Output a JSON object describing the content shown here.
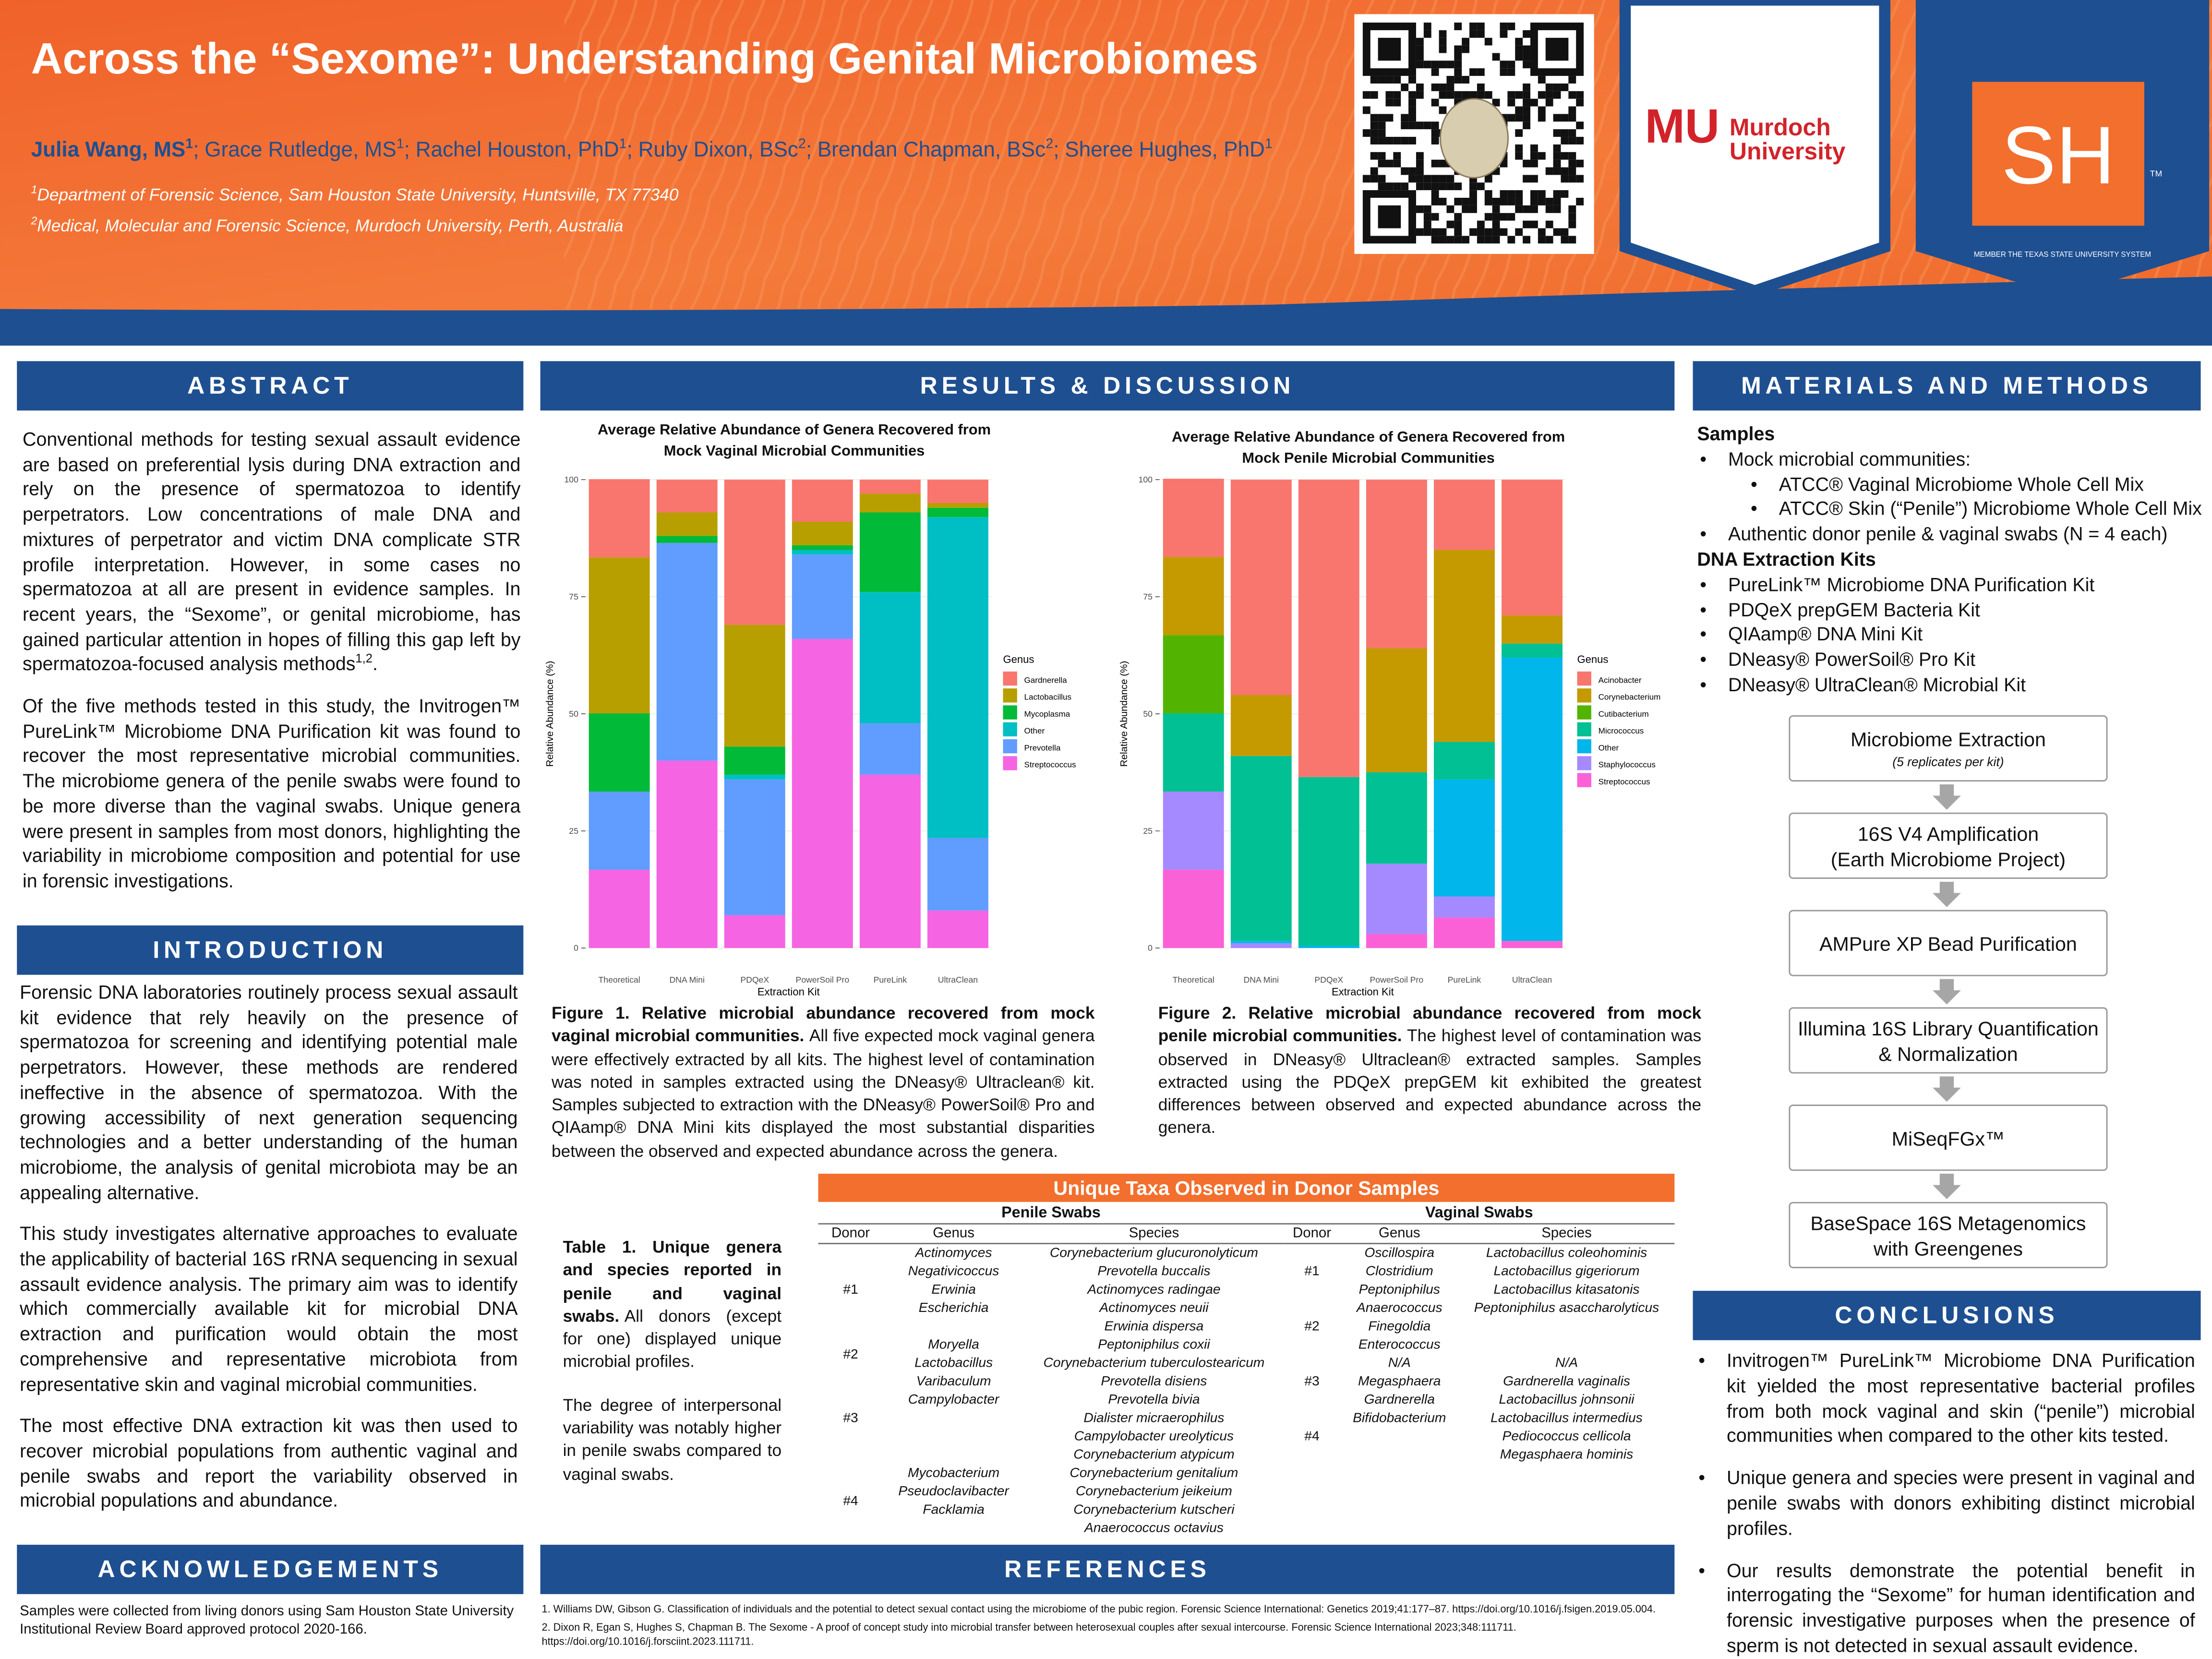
{
  "header": {
    "title": "Across the “Sexome”: Understanding Genital Microbiomes",
    "separator": ";",
    "authors": [
      {
        "name": "Julia Wang, MS",
        "affiliation": "1"
      },
      {
        "name": "Grace Rutledge, MS",
        "affiliation": "1"
      },
      {
        "name": "Rachel Houston, PhD",
        "affiliation": "1"
      },
      {
        "name": "Ruby Dixon, BSc",
        "affiliation": "2"
      },
      {
        "name": "Brendan Chapman, BSc",
        "affiliation": "2"
      },
      {
        "name": "Sheree Hughes, PhD",
        "affiliation": "1"
      }
    ],
    "affiliations": [
      {
        "mark": "1",
        "text": "Department of Forensic Science, Sam Houston State University, Huntsville, TX 77340"
      },
      {
        "mark": "2",
        "text": "Medical, Molecular and Forensic Science, Murdoch University, Perth, Australia"
      }
    ],
    "logos": {
      "murdoch_mark": "MU",
      "murdoch_name": [
        "Murdoch",
        "University"
      ],
      "shsu_mark": "SH",
      "shsu_tm": "TM",
      "shsu_member": "MEMBER THE TEXAS STATE UNIVERSITY SYSTEM"
    }
  },
  "abstract": {
    "heading": "ABSTRACT",
    "paragraphs": [
      {
        "text": "Conventional methods for testing sexual assault evidence are based on preferential lysis during DNA extraction and rely on the presence of spermatozoa to identify perpetrators. Low concentrations of male DNA and mixtures of perpetrator and victim DNA complicate STR profile interpretation. However, in some cases no spermatozoa at all are present in evidence samples. In recent years, the “Sexome”, or genital microbiome, has gained particular attention in hopes of filling this gap left by spermatozoa-focused analysis methods",
        "sup": "1,2",
        "tail": "."
      },
      {
        "text": "Of the five methods tested in this study, the Invitrogen™ PureLink™ Microbiome DNA Purification kit was found to recover the most representative microbial communities. The microbiome genera of the penile swabs were found to be more diverse than the vaginal swabs. Unique genera were present in samples from most donors, highlighting the variability in microbiome composition and potential for use in forensic investigations."
      }
    ]
  },
  "introduction": {
    "heading": "INTRODUCTION",
    "paragraphs": [
      "Forensic DNA laboratories routinely process sexual assault kit evidence that rely heavily on the presence of spermatozoa for screening and identifying potential male perpetrators. However, these methods are rendered ineffective in the absence of spermatozoa. With the growing accessibility of next generation sequencing technologies and a better understanding of the human microbiome, the analysis of genital microbiota may be an appealing alternative.",
      "This study investigates alternative approaches to evaluate the applicability of bacterial 16S rRNA sequencing in sexual assault evidence analysis. The primary aim was to identify which commercially available kit for microbial DNA extraction and purification would obtain the most comprehensive and representative microbiota from representative skin and vaginal microbial communities.",
      "The most effective DNA extraction kit was then used to recover microbial populations from authentic vaginal and penile swabs and report the variability observed in microbial populations and abundance."
    ]
  },
  "acknowledgements": {
    "heading": "ACKNOWLEDGEMENTS",
    "text": "Samples were collected from living donors using Sam Houston State University Institutional Review Board approved protocol 2020-166."
  },
  "results": {
    "heading": "RESULTS & DISCUSSION"
  },
  "chart_data": [
    {
      "type": "bar",
      "stacked": true,
      "legend": "right",
      "grid": true,
      "title": "Average Relative Abundance of Genera Recovered from Mock Vaginal Microbial Communities",
      "x_label": "Extraction Kit",
      "y_label": "Relative Abundance (%)",
      "legend_title": "Genus",
      "categories": [
        "Theoretical",
        "DNA Mini",
        "PDQeX",
        "PowerSoil Pro",
        "PureLink",
        "UltraClean"
      ],
      "ylim": [
        -5,
        105
      ],
      "yticks": [
        0,
        25,
        50,
        75,
        100
      ],
      "series": [
        {
          "name": "Gardnerella",
          "color": "#F8766D",
          "values": [
            16.7,
            7,
            31,
            9,
            3,
            5
          ]
        },
        {
          "name": "Lactobacillus",
          "color": "#B79F00",
          "values": [
            33.3,
            5,
            26,
            5,
            4,
            1
          ]
        },
        {
          "name": "Mycoplasma",
          "color": "#00BA38",
          "values": [
            16.7,
            1.5,
            6,
            1,
            17,
            2
          ]
        },
        {
          "name": "Other",
          "color": "#00BFC4",
          "values": [
            0,
            0,
            1,
            1,
            28,
            68.5
          ]
        },
        {
          "name": "Prevotella",
          "color": "#619CFF",
          "values": [
            16.7,
            46.5,
            29,
            18,
            11,
            15.5
          ]
        },
        {
          "name": "Streptococcus",
          "color": "#F564E3",
          "values": [
            16.7,
            40,
            7,
            66,
            37,
            8
          ]
        }
      ]
    },
    {
      "type": "bar",
      "stacked": true,
      "legend": "right",
      "grid": true,
      "title": "Average Relative Abundance of Genera Recovered from Mock Penile Microbial Communities",
      "x_label": "Extraction Kit",
      "y_label": "Relative Abundance (%)",
      "legend_title": "Genus",
      "categories": [
        "Theoretical",
        "DNA Mini",
        "PDQeX",
        "PowerSoil Pro",
        "PureLink",
        "UltraClean"
      ],
      "ylim": [
        -5,
        105
      ],
      "yticks": [
        0,
        25,
        50,
        75,
        100
      ],
      "series": [
        {
          "name": "Acinobacter",
          "color": "#F8766D",
          "values": [
            16.7,
            46,
            63.5,
            36,
            15,
            29
          ]
        },
        {
          "name": "Corynebacterium",
          "color": "#C49A00",
          "values": [
            16.7,
            13,
            0,
            26.5,
            41,
            6
          ]
        },
        {
          "name": "Cutibacterium",
          "color": "#53B400",
          "values": [
            16.7,
            0,
            0,
            0,
            0,
            0
          ]
        },
        {
          "name": "Micrococcus",
          "color": "#00C094",
          "values": [
            16.7,
            39.5,
            36,
            19.5,
            8,
            3
          ]
        },
        {
          "name": "Other",
          "color": "#00B6EB",
          "values": [
            0,
            0.5,
            0.5,
            0,
            25,
            60.5
          ]
        },
        {
          "name": "Staphylococcus",
          "color": "#A58AFF",
          "values": [
            16.7,
            1,
            0,
            15,
            4.5,
            0
          ]
        },
        {
          "name": "Streptococcus",
          "color": "#FB61D7",
          "values": [
            16.7,
            0,
            0,
            3,
            6.5,
            1.5
          ]
        }
      ]
    }
  ],
  "figures": [
    {
      "label": "Figure 1. Relative microbial abundance recovered from mock vaginal microbial communities.",
      "text": "All five expected mock vaginal genera were effectively extracted by all kits. The highest level of contamination was noted in samples extracted using the DNeasy® Ultraclean® kit. Samples subjected to extraction with the DNeasy® PowerSoil® Pro and QIAamp® DNA Mini kits displayed the most substantial disparities between the observed and expected abundance across the genera."
    },
    {
      "label": "Figure 2. Relative microbial abundance recovered from mock penile microbial communities.",
      "text": "The highest level of contamination was observed in DNeasy® Ultraclean® extracted samples. Samples extracted using the PDQeX prepGEM kit exhibited the greatest differences between observed and expected abundance across the genera."
    }
  ],
  "table": {
    "title": "Unique Taxa Observed in Donor Samples",
    "caption_label": "Table 1. Unique genera and species reported in penile and vaginal swabs.",
    "caption_text": "All donors (except for one) displayed unique microbial profiles.",
    "caption_note": "The degree of interpersonal variability was notably higher in penile swabs compared to vaginal swabs.",
    "groups": [
      {
        "name": "Penile Swabs",
        "columns": [
          "Donor",
          "Genus",
          "Species"
        ],
        "donors": [
          {
            "donor": "#1",
            "genus": [
              "Actinomyces",
              "Negativicoccus",
              "Erwinia",
              "Escherichia"
            ],
            "species": [
              "Corynebacterium glucuronolyticum",
              "Prevotella buccalis",
              "Actinomyces radingae",
              "Actinomyces neuii",
              "Erwinia dispersa"
            ]
          },
          {
            "donor": "#2",
            "genus": [
              "Moryella",
              "Lactobacillus"
            ],
            "species": [
              "Peptoniphilus coxii",
              "Corynebacterium tuberculostearicum"
            ]
          },
          {
            "donor": "#3",
            "genus": [
              "Varibaculum",
              "Campylobacter"
            ],
            "species": [
              "Prevotella disiens",
              "Prevotella bivia",
              "Dialister micraerophilus",
              "Campylobacter ureolyticus",
              "Corynebacterium atypicum"
            ]
          },
          {
            "donor": "#4",
            "genus": [
              "Mycobacterium",
              "Pseudoclavibacter",
              "Facklamia"
            ],
            "species": [
              "Corynebacterium genitalium",
              "Corynebacterium jeikeium",
              "Corynebacterium kutscheri",
              "Anaerococcus octavius"
            ]
          }
        ]
      },
      {
        "name": "Vaginal Swabs",
        "columns": [
          "Donor",
          "Genus",
          "Species"
        ],
        "donors": [
          {
            "donor": "#1",
            "genus": [
              "Oscillospira",
              "Clostridium",
              "Peptoniphilus"
            ],
            "species": [
              "Lactobacillus coleohominis",
              "Lactobacillus gigeriorum",
              "Lactobacillus kitasatonis"
            ]
          },
          {
            "donor": "#2",
            "genus": [
              "Anaerococcus",
              "Finegoldia",
              "Enterococcus"
            ],
            "species": [
              "Peptoniphilus asaccharolyticus"
            ]
          },
          {
            "donor": "#3",
            "genus": [
              "N/A",
              "Megasphaera",
              "Gardnerella"
            ],
            "species": [
              "N/A",
              "Gardnerella vaginalis",
              "Lactobacillus johnsonii"
            ]
          },
          {
            "donor": "#4",
            "genus": [
              "Bifidobacterium"
            ],
            "species": [
              "Lactobacillus intermedius",
              "Pediococcus cellicola",
              "Megasphaera hominis"
            ]
          }
        ]
      }
    ]
  },
  "references": {
    "heading": "REFERENCES",
    "items": [
      "1. Williams DW, Gibson G. Classification of individuals and the potential to detect sexual contact using the microbiome of the pubic region. Forensic Science International: Genetics 2019;41:177–87. https://doi.org/10.1016/j.fsigen.2019.05.004.",
      "2. Dixon R, Egan S, Hughes S, Chapman B. The Sexome - A proof of concept study into microbial transfer between heterosexual couples after sexual intercourse. Forensic Science International 2023;348:111711. https://doi.org/10.1016/j.forsciint.2023.111711."
    ]
  },
  "materials": {
    "heading": "MATERIALS AND METHODS",
    "samples_heading": "Samples",
    "samples": [
      {
        "text": "Mock microbial communities:",
        "sub": [
          "ATCC® Vaginal Microbiome Whole Cell Mix",
          "ATCC® Skin (“Penile”) Microbiome Whole Cell Mix"
        ]
      },
      {
        "text": "Authentic donor penile & vaginal swabs (N = 4 each)"
      }
    ],
    "kits_heading": "DNA Extraction Kits",
    "kits": [
      "PureLink™ Microbiome DNA Purification Kit",
      "PDQeX prepGEM Bacteria Kit",
      "QIAamp® DNA Mini Kit",
      "DNeasy® PowerSoil® Pro Kit",
      "DNeasy® UltraClean® Microbial Kit"
    ],
    "workflow": [
      {
        "lines": [
          "Microbiome Extraction"
        ],
        "note": "(5 replicates per kit)"
      },
      {
        "lines": [
          "16S V4 Amplification",
          "(Earth Microbiome Project)"
        ]
      },
      {
        "lines": [
          "AMPure XP Bead Purification"
        ]
      },
      {
        "lines": [
          "Illumina 16S Library Quantification & Normalization"
        ]
      },
      {
        "lines": [
          "MiSeqFGx™"
        ]
      },
      {
        "lines": [
          "BaseSpace 16S Metagenomics with Greengenes"
        ]
      }
    ]
  },
  "conclusions": {
    "heading": "CONCLUSIONS",
    "items": [
      "Invitrogen™ PureLink™ Microbiome DNA Purification kit yielded the most representative bacterial profiles from both mock vaginal and skin (“penile”) microbial communities when compared to the other kits tested.",
      "Unique genera and species were present in vaginal and penile swabs with donors exhibiting distinct microbial profiles.",
      "Our results demonstrate the potential benefit in interrogating the “Sexome” for human identification and forensic investigative purposes when the presence of sperm is not detected in sexual assault evidence."
    ]
  }
}
